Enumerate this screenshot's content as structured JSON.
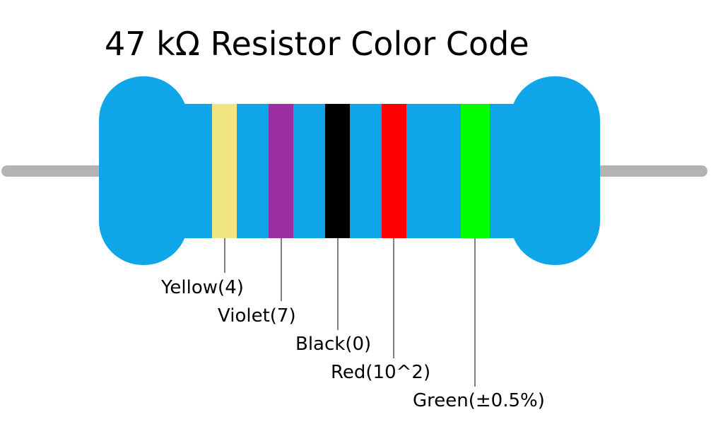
{
  "title": "47 kΩ Resistor Color Code",
  "bands": [
    {
      "label": "Yellow(4)"
    },
    {
      "label": "Violet(7)"
    },
    {
      "label": "Black(0)"
    },
    {
      "label": "Red(10^2)"
    },
    {
      "label": "Green(±0.5%)"
    }
  ]
}
